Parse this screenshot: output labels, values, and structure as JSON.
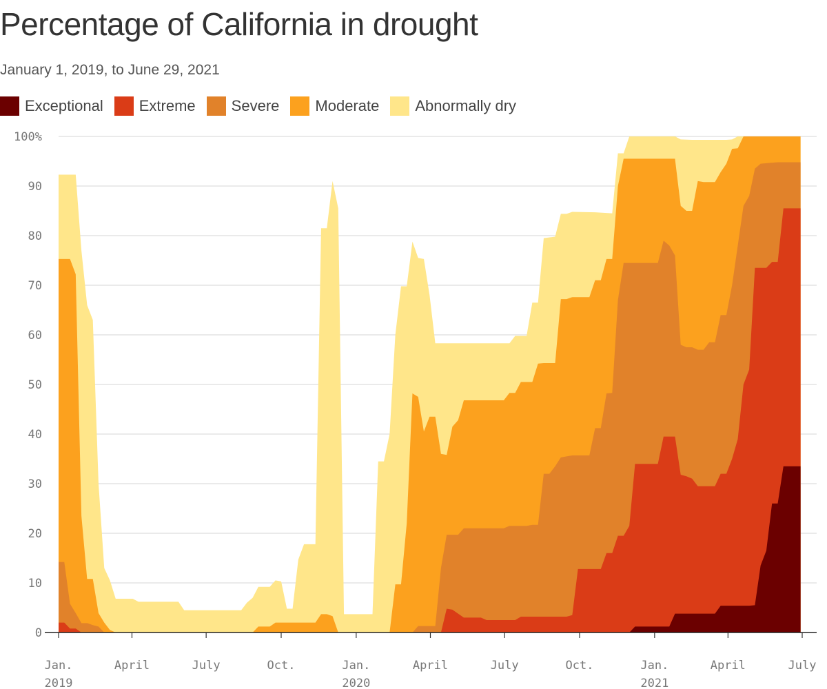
{
  "title": "Percentage of California in drought",
  "subtitle": "January 1, 2019, to June 29, 2021",
  "chart_data": {
    "type": "area",
    "title": "Percentage of California in drought",
    "subtitle": "January 1, 2019, to June 29, 2021",
    "stacking": "cumulative (each series value is the percentage of California at that drought level or worse)",
    "x_axis": {
      "ticks": [
        {
          "date": "2019-01-01",
          "label1": "Jan.",
          "label2": "2019"
        },
        {
          "date": "2019-04-01",
          "label1": "April",
          "label2": ""
        },
        {
          "date": "2019-07-01",
          "label1": "July",
          "label2": ""
        },
        {
          "date": "2019-10-01",
          "label1": "Oct.",
          "label2": ""
        },
        {
          "date": "2020-01-01",
          "label1": "Jan.",
          "label2": "2020"
        },
        {
          "date": "2020-04-01",
          "label1": "April",
          "label2": ""
        },
        {
          "date": "2020-07-01",
          "label1": "July",
          "label2": ""
        },
        {
          "date": "2020-10-01",
          "label1": "Oct.",
          "label2": ""
        },
        {
          "date": "2021-01-01",
          "label1": "Jan.",
          "label2": "2021"
        },
        {
          "date": "2021-04-01",
          "label1": "April",
          "label2": ""
        },
        {
          "date": "2021-07-01",
          "label1": "July",
          "label2": ""
        }
      ],
      "range": [
        "2019-01-01",
        "2021-07-01"
      ]
    },
    "y_axis": {
      "range": [
        0,
        100
      ],
      "ticks": [
        0,
        10,
        20,
        30,
        40,
        50,
        60,
        70,
        80,
        90,
        100
      ],
      "tick_labels": [
        "0",
        "10",
        "20",
        "30",
        "40",
        "50",
        "60",
        "70",
        "80",
        "90",
        "100%"
      ],
      "grid": true
    },
    "legend": {
      "placement": "top-left"
    },
    "series": [
      {
        "name": "Abnormally dry",
        "color": "#ffe68a",
        "points": [
          [
            "2019-01-01",
            92.3
          ],
          [
            "2019-01-15",
            92.3
          ],
          [
            "2019-01-22",
            92.3
          ],
          [
            "2019-01-29",
            77.0
          ],
          [
            "2019-02-05",
            66.0
          ],
          [
            "2019-02-12",
            63.0
          ],
          [
            "2019-02-19",
            30.0
          ],
          [
            "2019-02-26",
            13.0
          ],
          [
            "2019-03-05",
            10.5
          ],
          [
            "2019-03-12",
            6.8
          ],
          [
            "2019-04-02",
            6.8
          ],
          [
            "2019-04-09",
            6.2
          ],
          [
            "2019-05-28",
            6.2
          ],
          [
            "2019-06-04",
            4.5
          ],
          [
            "2019-08-13",
            4.5
          ],
          [
            "2019-08-20",
            6.0
          ],
          [
            "2019-08-27",
            7.0
          ],
          [
            "2019-09-03",
            9.2
          ],
          [
            "2019-09-17",
            9.2
          ],
          [
            "2019-09-24",
            10.5
          ],
          [
            "2019-10-01",
            10.3
          ],
          [
            "2019-10-08",
            4.8
          ],
          [
            "2019-10-15",
            4.8
          ],
          [
            "2019-10-22",
            14.7
          ],
          [
            "2019-10-29",
            17.8
          ],
          [
            "2019-11-12",
            17.8
          ],
          [
            "2019-11-19",
            81.5
          ],
          [
            "2019-11-26",
            81.5
          ],
          [
            "2019-12-03",
            91.0
          ],
          [
            "2019-12-10",
            85.5
          ],
          [
            "2019-12-17",
            3.7
          ],
          [
            "2020-01-14",
            3.7
          ],
          [
            "2020-01-21",
            3.7
          ],
          [
            "2020-01-28",
            34.5
          ],
          [
            "2020-02-04",
            34.5
          ],
          [
            "2020-02-11",
            40.0
          ],
          [
            "2020-02-18",
            60.0
          ],
          [
            "2020-02-25",
            69.8
          ],
          [
            "2020-03-03",
            69.8
          ],
          [
            "2020-03-10",
            78.8
          ],
          [
            "2020-03-17",
            75.5
          ],
          [
            "2020-03-24",
            75.3
          ],
          [
            "2020-03-31",
            68.0
          ],
          [
            "2020-04-07",
            58.3
          ],
          [
            "2020-04-14",
            58.3
          ],
          [
            "2020-06-30",
            58.3
          ],
          [
            "2020-07-07",
            58.3
          ],
          [
            "2020-07-14",
            59.8
          ],
          [
            "2020-07-28",
            59.8
          ],
          [
            "2020-08-04",
            66.5
          ],
          [
            "2020-08-11",
            66.5
          ],
          [
            "2020-08-18",
            79.5
          ],
          [
            "2020-09-01",
            79.8
          ],
          [
            "2020-09-08",
            84.4
          ],
          [
            "2020-09-15",
            84.4
          ],
          [
            "2020-09-22",
            84.8
          ],
          [
            "2020-10-20",
            84.7
          ],
          [
            "2020-11-10",
            84.5
          ],
          [
            "2020-11-17",
            96.6
          ],
          [
            "2020-11-24",
            96.6
          ],
          [
            "2020-12-01",
            100.0
          ],
          [
            "2021-01-26",
            100.0
          ],
          [
            "2021-02-02",
            99.4
          ],
          [
            "2021-02-16",
            99.3
          ],
          [
            "2021-03-30",
            99.3
          ],
          [
            "2021-04-06",
            99.4
          ],
          [
            "2021-04-13",
            100.0
          ],
          [
            "2021-06-29",
            100.0
          ]
        ]
      },
      {
        "name": "Moderate",
        "color": "#fca11e",
        "points": [
          [
            "2019-01-01",
            75.3
          ],
          [
            "2019-01-08",
            75.3
          ],
          [
            "2019-01-15",
            75.3
          ],
          [
            "2019-01-22",
            72.2
          ],
          [
            "2019-01-29",
            23.5
          ],
          [
            "2019-02-05",
            10.8
          ],
          [
            "2019-02-12",
            10.8
          ],
          [
            "2019-02-19",
            3.9
          ],
          [
            "2019-02-26",
            2.0
          ],
          [
            "2019-03-05",
            0.5
          ],
          [
            "2019-03-12",
            0.0
          ],
          [
            "2019-08-27",
            0.0
          ],
          [
            "2019-09-03",
            1.2
          ],
          [
            "2019-09-17",
            1.2
          ],
          [
            "2019-09-24",
            2.0
          ],
          [
            "2019-11-12",
            2.0
          ],
          [
            "2019-11-19",
            3.7
          ],
          [
            "2019-11-26",
            3.7
          ],
          [
            "2019-12-03",
            3.3
          ],
          [
            "2019-12-10",
            0.0
          ],
          [
            "2020-02-11",
            0.0
          ],
          [
            "2020-02-18",
            9.7
          ],
          [
            "2020-02-25",
            9.7
          ],
          [
            "2020-03-03",
            22.0
          ],
          [
            "2020-03-10",
            48.2
          ],
          [
            "2020-03-17",
            47.5
          ],
          [
            "2020-03-24",
            40.5
          ],
          [
            "2020-03-31",
            43.5
          ],
          [
            "2020-04-07",
            43.5
          ],
          [
            "2020-04-14",
            36.0
          ],
          [
            "2020-04-21",
            35.8
          ],
          [
            "2020-04-28",
            41.5
          ],
          [
            "2020-05-05",
            42.8
          ],
          [
            "2020-05-12",
            46.8
          ],
          [
            "2020-06-30",
            46.8
          ],
          [
            "2020-07-07",
            48.3
          ],
          [
            "2020-07-14",
            48.3
          ],
          [
            "2020-07-21",
            50.5
          ],
          [
            "2020-07-28",
            50.5
          ],
          [
            "2020-08-04",
            50.5
          ],
          [
            "2020-08-11",
            54.2
          ],
          [
            "2020-08-18",
            54.3
          ],
          [
            "2020-09-01",
            54.3
          ],
          [
            "2020-09-08",
            67.2
          ],
          [
            "2020-09-15",
            67.2
          ],
          [
            "2020-09-22",
            67.6
          ],
          [
            "2020-10-13",
            67.6
          ],
          [
            "2020-10-20",
            71.0
          ],
          [
            "2020-10-27",
            71.0
          ],
          [
            "2020-11-03",
            75.3
          ],
          [
            "2020-11-10",
            75.3
          ],
          [
            "2020-11-17",
            90.0
          ],
          [
            "2020-11-24",
            95.5
          ],
          [
            "2021-01-26",
            95.5
          ],
          [
            "2021-02-02",
            86.0
          ],
          [
            "2021-02-09",
            85.0
          ],
          [
            "2021-02-16",
            85.0
          ],
          [
            "2021-02-23",
            91.0
          ],
          [
            "2021-03-02",
            90.8
          ],
          [
            "2021-03-16",
            90.8
          ],
          [
            "2021-03-23",
            92.8
          ],
          [
            "2021-03-30",
            94.5
          ],
          [
            "2021-04-06",
            97.5
          ],
          [
            "2021-04-13",
            97.6
          ],
          [
            "2021-04-20",
            100.0
          ],
          [
            "2021-06-29",
            100.0
          ]
        ]
      },
      {
        "name": "Severe",
        "color": "#e1822a",
        "points": [
          [
            "2019-01-01",
            14.2
          ],
          [
            "2019-01-08",
            14.2
          ],
          [
            "2019-01-15",
            5.8
          ],
          [
            "2019-01-22",
            3.9
          ],
          [
            "2019-01-29",
            1.9
          ],
          [
            "2019-02-05",
            1.9
          ],
          [
            "2019-02-12",
            1.5
          ],
          [
            "2019-02-19",
            1.2
          ],
          [
            "2019-02-26",
            0.0
          ],
          [
            "2020-03-10",
            0.0
          ],
          [
            "2020-03-17",
            1.3
          ],
          [
            "2020-04-07",
            1.3
          ],
          [
            "2020-04-14",
            13.0
          ],
          [
            "2020-04-21",
            19.7
          ],
          [
            "2020-05-05",
            19.7
          ],
          [
            "2020-05-12",
            21.0
          ],
          [
            "2020-06-30",
            21.0
          ],
          [
            "2020-07-07",
            21.5
          ],
          [
            "2020-07-28",
            21.5
          ],
          [
            "2020-08-04",
            21.7
          ],
          [
            "2020-08-11",
            21.7
          ],
          [
            "2020-08-18",
            32.0
          ],
          [
            "2020-08-25",
            32.0
          ],
          [
            "2020-09-01",
            33.5
          ],
          [
            "2020-09-08",
            35.3
          ],
          [
            "2020-09-15",
            35.5
          ],
          [
            "2020-09-22",
            35.7
          ],
          [
            "2020-10-13",
            35.7
          ],
          [
            "2020-10-20",
            41.2
          ],
          [
            "2020-10-27",
            41.2
          ],
          [
            "2020-11-03",
            48.2
          ],
          [
            "2020-11-10",
            48.3
          ],
          [
            "2020-11-17",
            67.0
          ],
          [
            "2020-11-24",
            74.5
          ],
          [
            "2021-01-05",
            74.5
          ],
          [
            "2021-01-12",
            79.0
          ],
          [
            "2021-01-19",
            78.0
          ],
          [
            "2021-01-26",
            76.0
          ],
          [
            "2021-02-02",
            58.0
          ],
          [
            "2021-02-09",
            57.5
          ],
          [
            "2021-02-16",
            57.5
          ],
          [
            "2021-02-23",
            57.0
          ],
          [
            "2021-03-02",
            57.0
          ],
          [
            "2021-03-09",
            58.5
          ],
          [
            "2021-03-16",
            58.5
          ],
          [
            "2021-03-23",
            64.0
          ],
          [
            "2021-03-30",
            64.0
          ],
          [
            "2021-04-06",
            70.0
          ],
          [
            "2021-04-13",
            78.0
          ],
          [
            "2021-04-20",
            86.0
          ],
          [
            "2021-04-27",
            88.0
          ],
          [
            "2021-05-04",
            93.5
          ],
          [
            "2021-05-11",
            94.5
          ],
          [
            "2021-05-25",
            94.7
          ],
          [
            "2021-06-01",
            94.8
          ],
          [
            "2021-06-29",
            94.8
          ]
        ]
      },
      {
        "name": "Extreme",
        "color": "#da3c17",
        "points": [
          [
            "2019-01-01",
            2.0
          ],
          [
            "2019-01-08",
            2.0
          ],
          [
            "2019-01-15",
            0.8
          ],
          [
            "2019-01-22",
            0.8
          ],
          [
            "2019-01-29",
            0.0
          ],
          [
            "2020-04-14",
            0.0
          ],
          [
            "2020-04-21",
            4.8
          ],
          [
            "2020-04-28",
            4.6
          ],
          [
            "2020-05-12",
            3.0
          ],
          [
            "2020-06-02",
            3.0
          ],
          [
            "2020-06-09",
            2.5
          ],
          [
            "2020-07-14",
            2.5
          ],
          [
            "2020-07-21",
            3.2
          ],
          [
            "2020-09-15",
            3.2
          ],
          [
            "2020-09-22",
            3.5
          ],
          [
            "2020-09-29",
            12.8
          ],
          [
            "2020-10-27",
            12.8
          ],
          [
            "2020-11-03",
            16.0
          ],
          [
            "2020-11-10",
            16.0
          ],
          [
            "2020-11-17",
            19.5
          ],
          [
            "2020-11-24",
            19.5
          ],
          [
            "2020-12-01",
            21.5
          ],
          [
            "2020-12-08",
            34.0
          ],
          [
            "2021-01-05",
            34.0
          ],
          [
            "2021-01-12",
            39.5
          ],
          [
            "2021-01-26",
            39.5
          ],
          [
            "2021-02-02",
            31.8
          ],
          [
            "2021-02-09",
            31.5
          ],
          [
            "2021-02-16",
            31.0
          ],
          [
            "2021-02-23",
            29.5
          ],
          [
            "2021-03-16",
            29.5
          ],
          [
            "2021-03-23",
            32.0
          ],
          [
            "2021-03-30",
            32.0
          ],
          [
            "2021-04-06",
            35.0
          ],
          [
            "2021-04-13",
            39.0
          ],
          [
            "2021-04-20",
            50.0
          ],
          [
            "2021-04-27",
            53.0
          ],
          [
            "2021-05-04",
            73.5
          ],
          [
            "2021-05-18",
            73.5
          ],
          [
            "2021-05-25",
            74.7
          ],
          [
            "2021-06-01",
            74.7
          ],
          [
            "2021-06-08",
            85.5
          ],
          [
            "2021-06-29",
            85.5
          ]
        ]
      },
      {
        "name": "Exceptional",
        "color": "#6b0000",
        "points": [
          [
            "2019-01-01",
            0.0
          ],
          [
            "2020-12-01",
            0.0
          ],
          [
            "2020-12-08",
            1.2
          ],
          [
            "2021-01-19",
            1.2
          ],
          [
            "2021-01-26",
            3.8
          ],
          [
            "2021-03-16",
            3.8
          ],
          [
            "2021-03-23",
            5.4
          ],
          [
            "2021-04-27",
            5.4
          ],
          [
            "2021-05-04",
            5.5
          ],
          [
            "2021-05-11",
            13.5
          ],
          [
            "2021-05-18",
            16.5
          ],
          [
            "2021-05-25",
            26.0
          ],
          [
            "2021-06-01",
            26.0
          ],
          [
            "2021-06-08",
            33.5
          ],
          [
            "2021-06-29",
            33.5
          ]
        ]
      }
    ]
  }
}
